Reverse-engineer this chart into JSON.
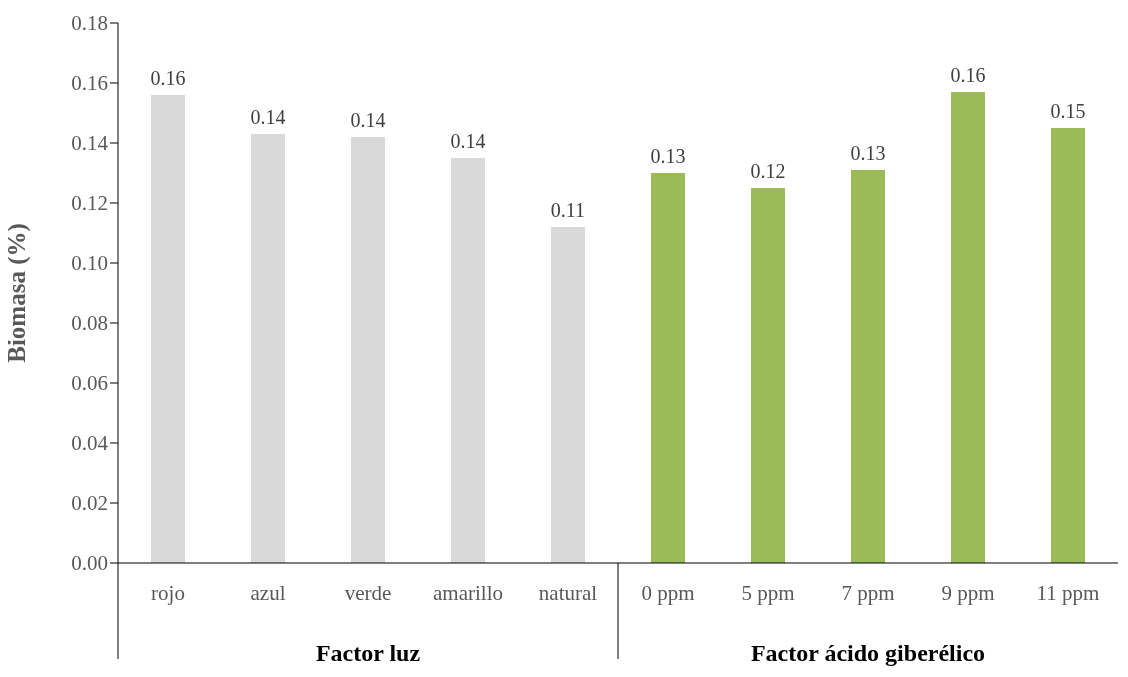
{
  "chart_data": {
    "type": "bar",
    "ylabel": "Biomasa (%)",
    "categories": [
      "rojo",
      "azul",
      "verde",
      "amarillo",
      "natural",
      "0 ppm",
      "5 ppm",
      "7 ppm",
      "9 ppm",
      "11 ppm"
    ],
    "values": [
      0.156,
      0.143,
      0.142,
      0.135,
      0.112,
      0.13,
      0.125,
      0.131,
      0.157,
      0.145
    ],
    "value_labels": [
      "0.16",
      "0.14",
      "0.14",
      "0.14",
      "0.11",
      "0.13",
      "0.12",
      "0.13",
      "0.16",
      "0.15"
    ],
    "colors": [
      "#d9d9d9",
      "#d9d9d9",
      "#d9d9d9",
      "#d9d9d9",
      "#d9d9d9",
      "#9bbb59",
      "#9bbb59",
      "#9bbb59",
      "#9bbb59",
      "#9bbb59"
    ],
    "ylim": [
      0,
      0.18
    ],
    "yticks": [
      {
        "value": 0,
        "label": "0.00"
      },
      {
        "value": 0.02,
        "label": "0.02"
      },
      {
        "value": 0.04,
        "label": "0.04"
      },
      {
        "value": 0.06,
        "label": "0.06"
      },
      {
        "value": 0.08,
        "label": "0.08"
      },
      {
        "value": 0.1,
        "label": "0.10"
      },
      {
        "value": 0.12,
        "label": "0.12"
      },
      {
        "value": 0.14,
        "label": "0.14"
      },
      {
        "value": 0.16,
        "label": "0.16"
      },
      {
        "value": 0.18,
        "label": "0.18"
      }
    ],
    "annotations": [
      "Factor luz",
      "Factor ácido giberélico"
    ]
  }
}
